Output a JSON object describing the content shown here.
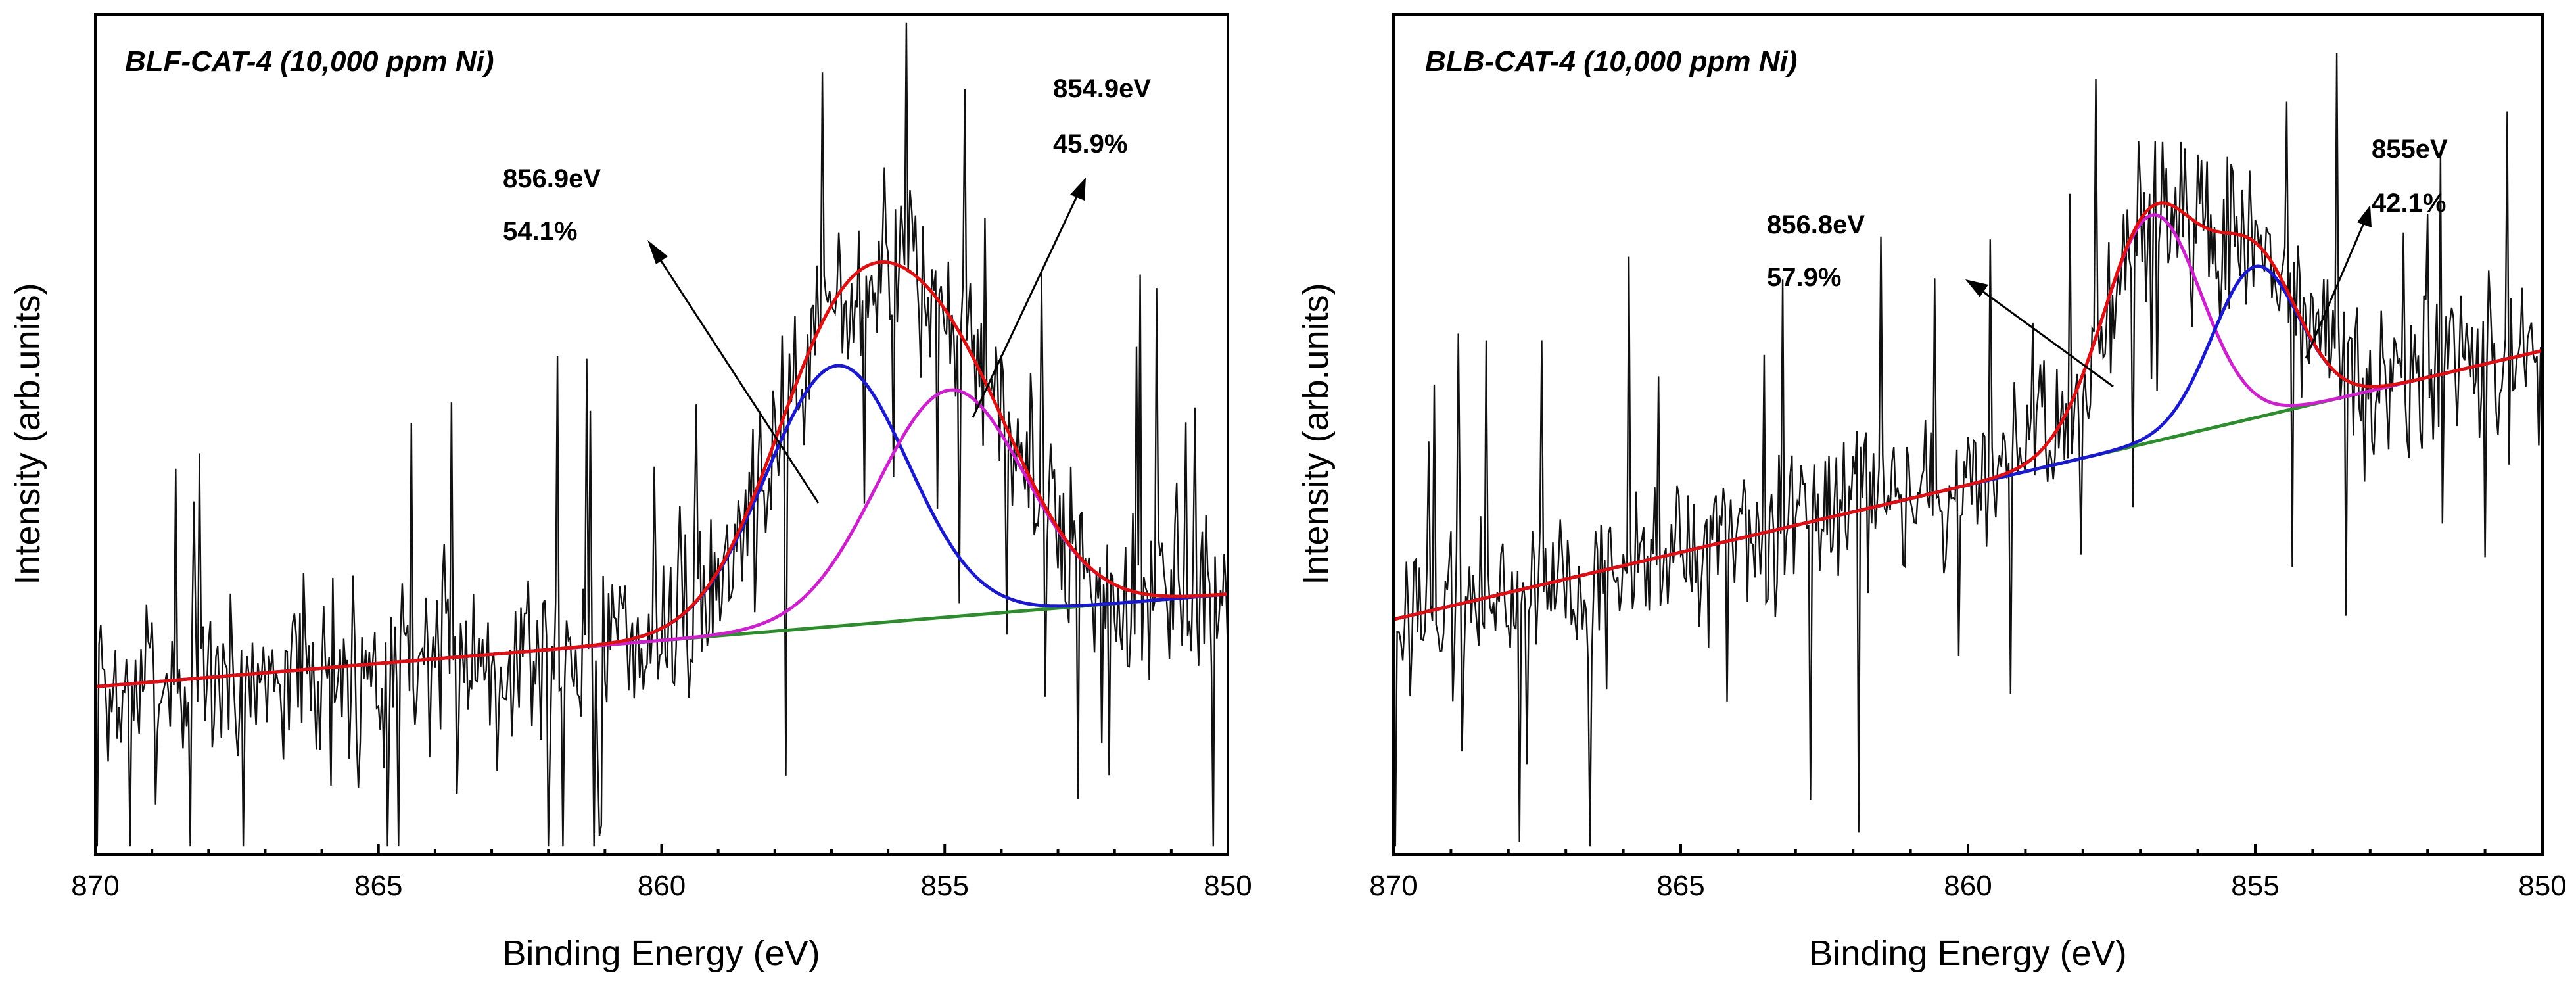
{
  "chart_data": [
    {
      "type": "line",
      "title": "BLF-CAT-4 (10,000 ppm Ni)",
      "xlabel": "Binding Energy (eV)",
      "ylabel": "Intensity (arb.units)",
      "xlim": [
        870,
        850
      ],
      "x_ticks": [
        870,
        865,
        860,
        855,
        850
      ],
      "x_tick_labels": [
        "870",
        "865",
        "860",
        "855",
        "850"
      ],
      "ylim": [
        0,
        100
      ],
      "background": {
        "start": 20,
        "end": 31,
        "color": "#2e8b2e"
      },
      "noise": {
        "sigma": 11,
        "spike_amp": 28,
        "seed": 7
      },
      "peaks": [
        {
          "name": "856.9eV",
          "center": 856.9,
          "height": 31,
          "width": 1.25,
          "color": "#1a1acc",
          "label_energy": "856.9eV",
          "label_area": "54.1%"
        },
        {
          "name": "854.9eV",
          "center": 854.9,
          "height": 27,
          "width": 1.3,
          "color": "#cc22cc",
          "label_energy": "854.9eV",
          "label_area": "45.9%"
        }
      ],
      "envelope_color": "#dd1111",
      "raw_color": "#111111"
    },
    {
      "type": "line",
      "title": "BLB-CAT-4 (10,000 ppm Ni)",
      "xlabel": "Binding Energy (eV)",
      "ylabel": "Intensity (arb.units)",
      "xlim": [
        870,
        850
      ],
      "x_ticks": [
        870,
        865,
        860,
        855,
        850
      ],
      "x_tick_labels": [
        "870",
        "865",
        "860",
        "855",
        "850"
      ],
      "ylim": [
        0,
        100
      ],
      "background": {
        "start": 28,
        "end": 60,
        "color": "#2e8b2e"
      },
      "noise": {
        "sigma": 10,
        "spike_amp": 30,
        "seed": 19
      },
      "peaks": [
        {
          "name": "856.8eV",
          "center": 856.8,
          "height": 27,
          "width": 0.85,
          "color": "#cc22cc",
          "label_energy": "856.8eV",
          "label_area": "57.9%"
        },
        {
          "name": "855eV",
          "center": 855.0,
          "height": 18,
          "width": 0.75,
          "color": "#1a1acc",
          "label_energy": "855eV",
          "label_area": "42.1%"
        }
      ],
      "envelope_color": "#dd1111",
      "raw_color": "#111111"
    }
  ]
}
